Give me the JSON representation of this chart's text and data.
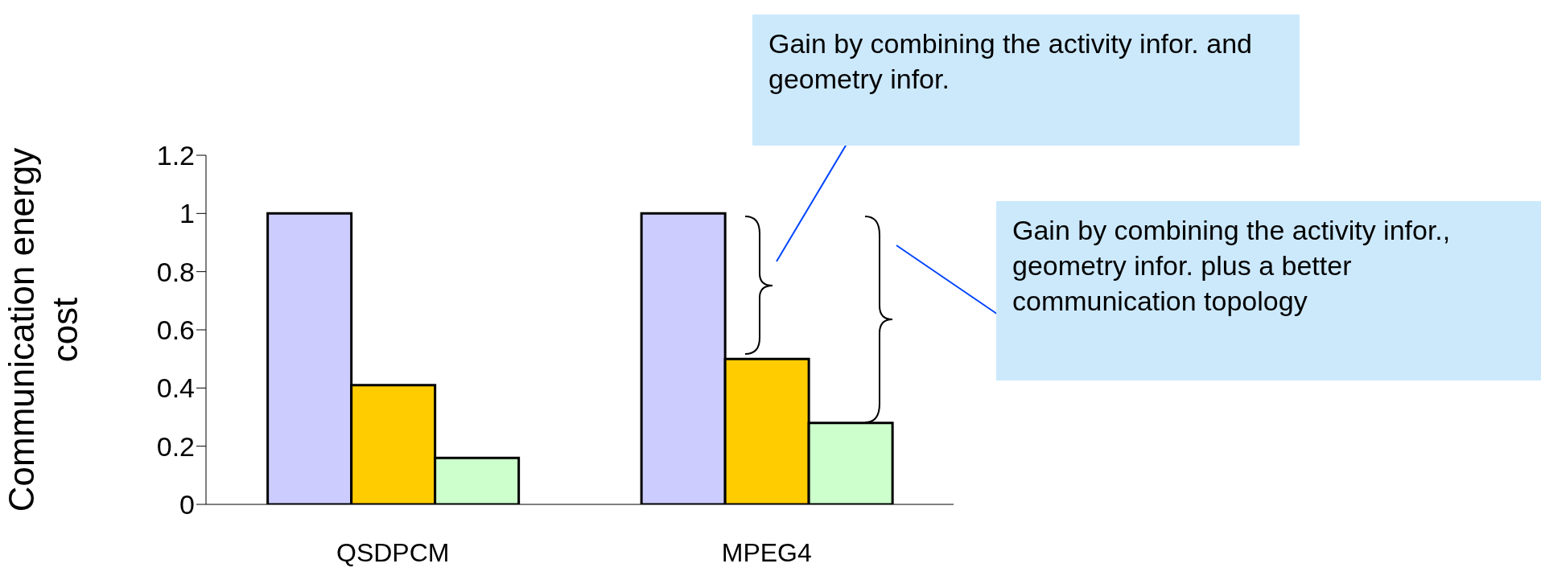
{
  "chart_data": {
    "type": "bar",
    "ylabel": "Communication energy cost",
    "categories": [
      "QSDPCM",
      "MPEG4"
    ],
    "series": [
      {
        "color": "#ccccff",
        "values": [
          1.0,
          1.0
        ]
      },
      {
        "color": "#ffcc00",
        "values": [
          0.41,
          0.5
        ]
      },
      {
        "color": "#ccffcc",
        "values": [
          0.16,
          0.28
        ]
      }
    ],
    "ylim": [
      0,
      1.2
    ],
    "yticks": [
      0,
      0.2,
      0.4,
      0.6,
      0.8,
      1,
      1.2
    ],
    "grid": false,
    "legend": false,
    "annotations": [
      "Gain by combining the activity infor. and geometry infor.",
      "Gain by combining the activity infor., geometry infor. plus a better communication topology"
    ]
  }
}
